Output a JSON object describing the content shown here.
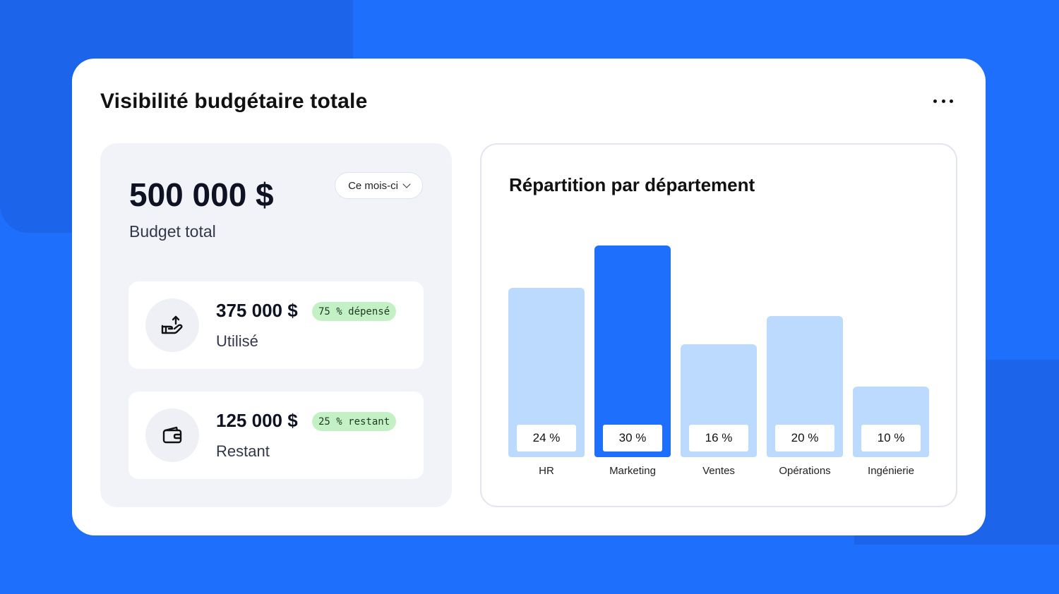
{
  "card": {
    "title": "Visibilité budgétaire totale"
  },
  "budget": {
    "total_amount": "500 000 $",
    "total_label": "Budget total",
    "period": "Ce mois-ci"
  },
  "used": {
    "amount": "375 000 $",
    "badge": "75 % dépensé",
    "label": "Utilisé",
    "icon": "hand-upload-icon"
  },
  "remaining": {
    "amount": "125 000 $",
    "badge": "25 % restant",
    "label": "Restant",
    "icon": "wallet-icon"
  },
  "colors": {
    "accent": "#1f6ffd",
    "bar_light": "#bbdafe",
    "badge_green": "#c4f0c6"
  },
  "chart_data": {
    "type": "bar",
    "title": "Répartition par département",
    "categories": [
      "HR",
      "Marketing",
      "Ventes",
      "Opérations",
      "Ingénierie"
    ],
    "values": [
      24,
      30,
      16,
      20,
      10
    ],
    "value_labels": [
      "24 %",
      "30 %",
      "16 %",
      "20 %",
      "10 %"
    ],
    "highlight_index": 1,
    "ylim": [
      0,
      30
    ],
    "grid": false
  }
}
